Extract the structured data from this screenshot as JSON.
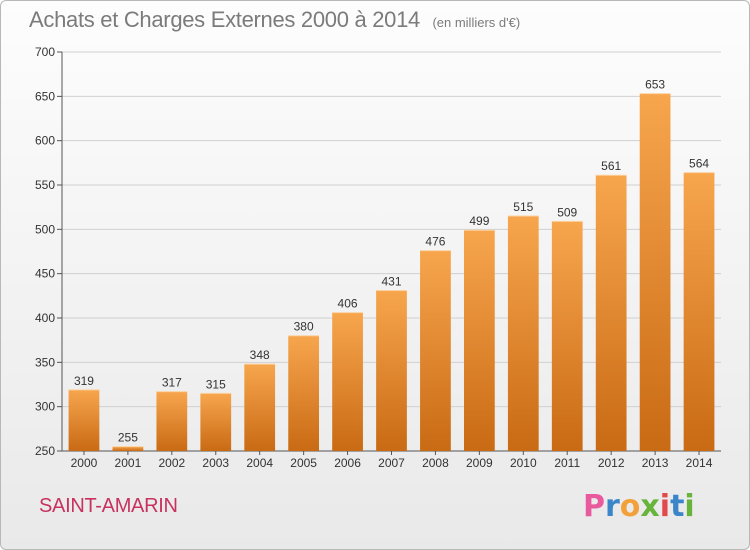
{
  "title": "Achats et Charges Externes 2000 à 2014",
  "subtitle": "(en milliers d'€)",
  "town": "SAINT-AMARIN",
  "brand": {
    "letters": [
      "P",
      "r",
      "o",
      "x",
      "i",
      "t",
      "i"
    ],
    "colors": [
      "#e85a9d",
      "#3a86c8",
      "#f2a13a",
      "#67b33c",
      "#e14a4a",
      "#3a86c8",
      "#67b33c"
    ]
  },
  "colors": {
    "bar_top": "#f7a64e",
    "bar_bottom": "#c96a14",
    "town": "#c8325f",
    "text": "#7b7b7b",
    "grid": "#d0d0d0"
  },
  "chart_data": {
    "type": "bar",
    "categories": [
      "2000",
      "2001",
      "2002",
      "2003",
      "2004",
      "2005",
      "2006",
      "2007",
      "2008",
      "2009",
      "2010",
      "2011",
      "2012",
      "2013",
      "2014"
    ],
    "values": [
      319,
      255,
      317,
      315,
      348,
      380,
      406,
      431,
      476,
      499,
      515,
      509,
      561,
      653,
      564
    ],
    "value_labels": [
      "319",
      "255",
      "317",
      "315",
      "348",
      "380",
      "406",
      "431",
      "476",
      "499",
      "515",
      "509",
      "561",
      "653",
      "564"
    ],
    "yticks": [
      "250",
      "300",
      "350",
      "400",
      "450",
      "500",
      "550",
      "600",
      "650",
      "700"
    ],
    "ylim": [
      250,
      700
    ],
    "grid": true,
    "title": "Achats et Charges Externes 2000 à 2014",
    "xlabel": "",
    "ylabel": ""
  }
}
